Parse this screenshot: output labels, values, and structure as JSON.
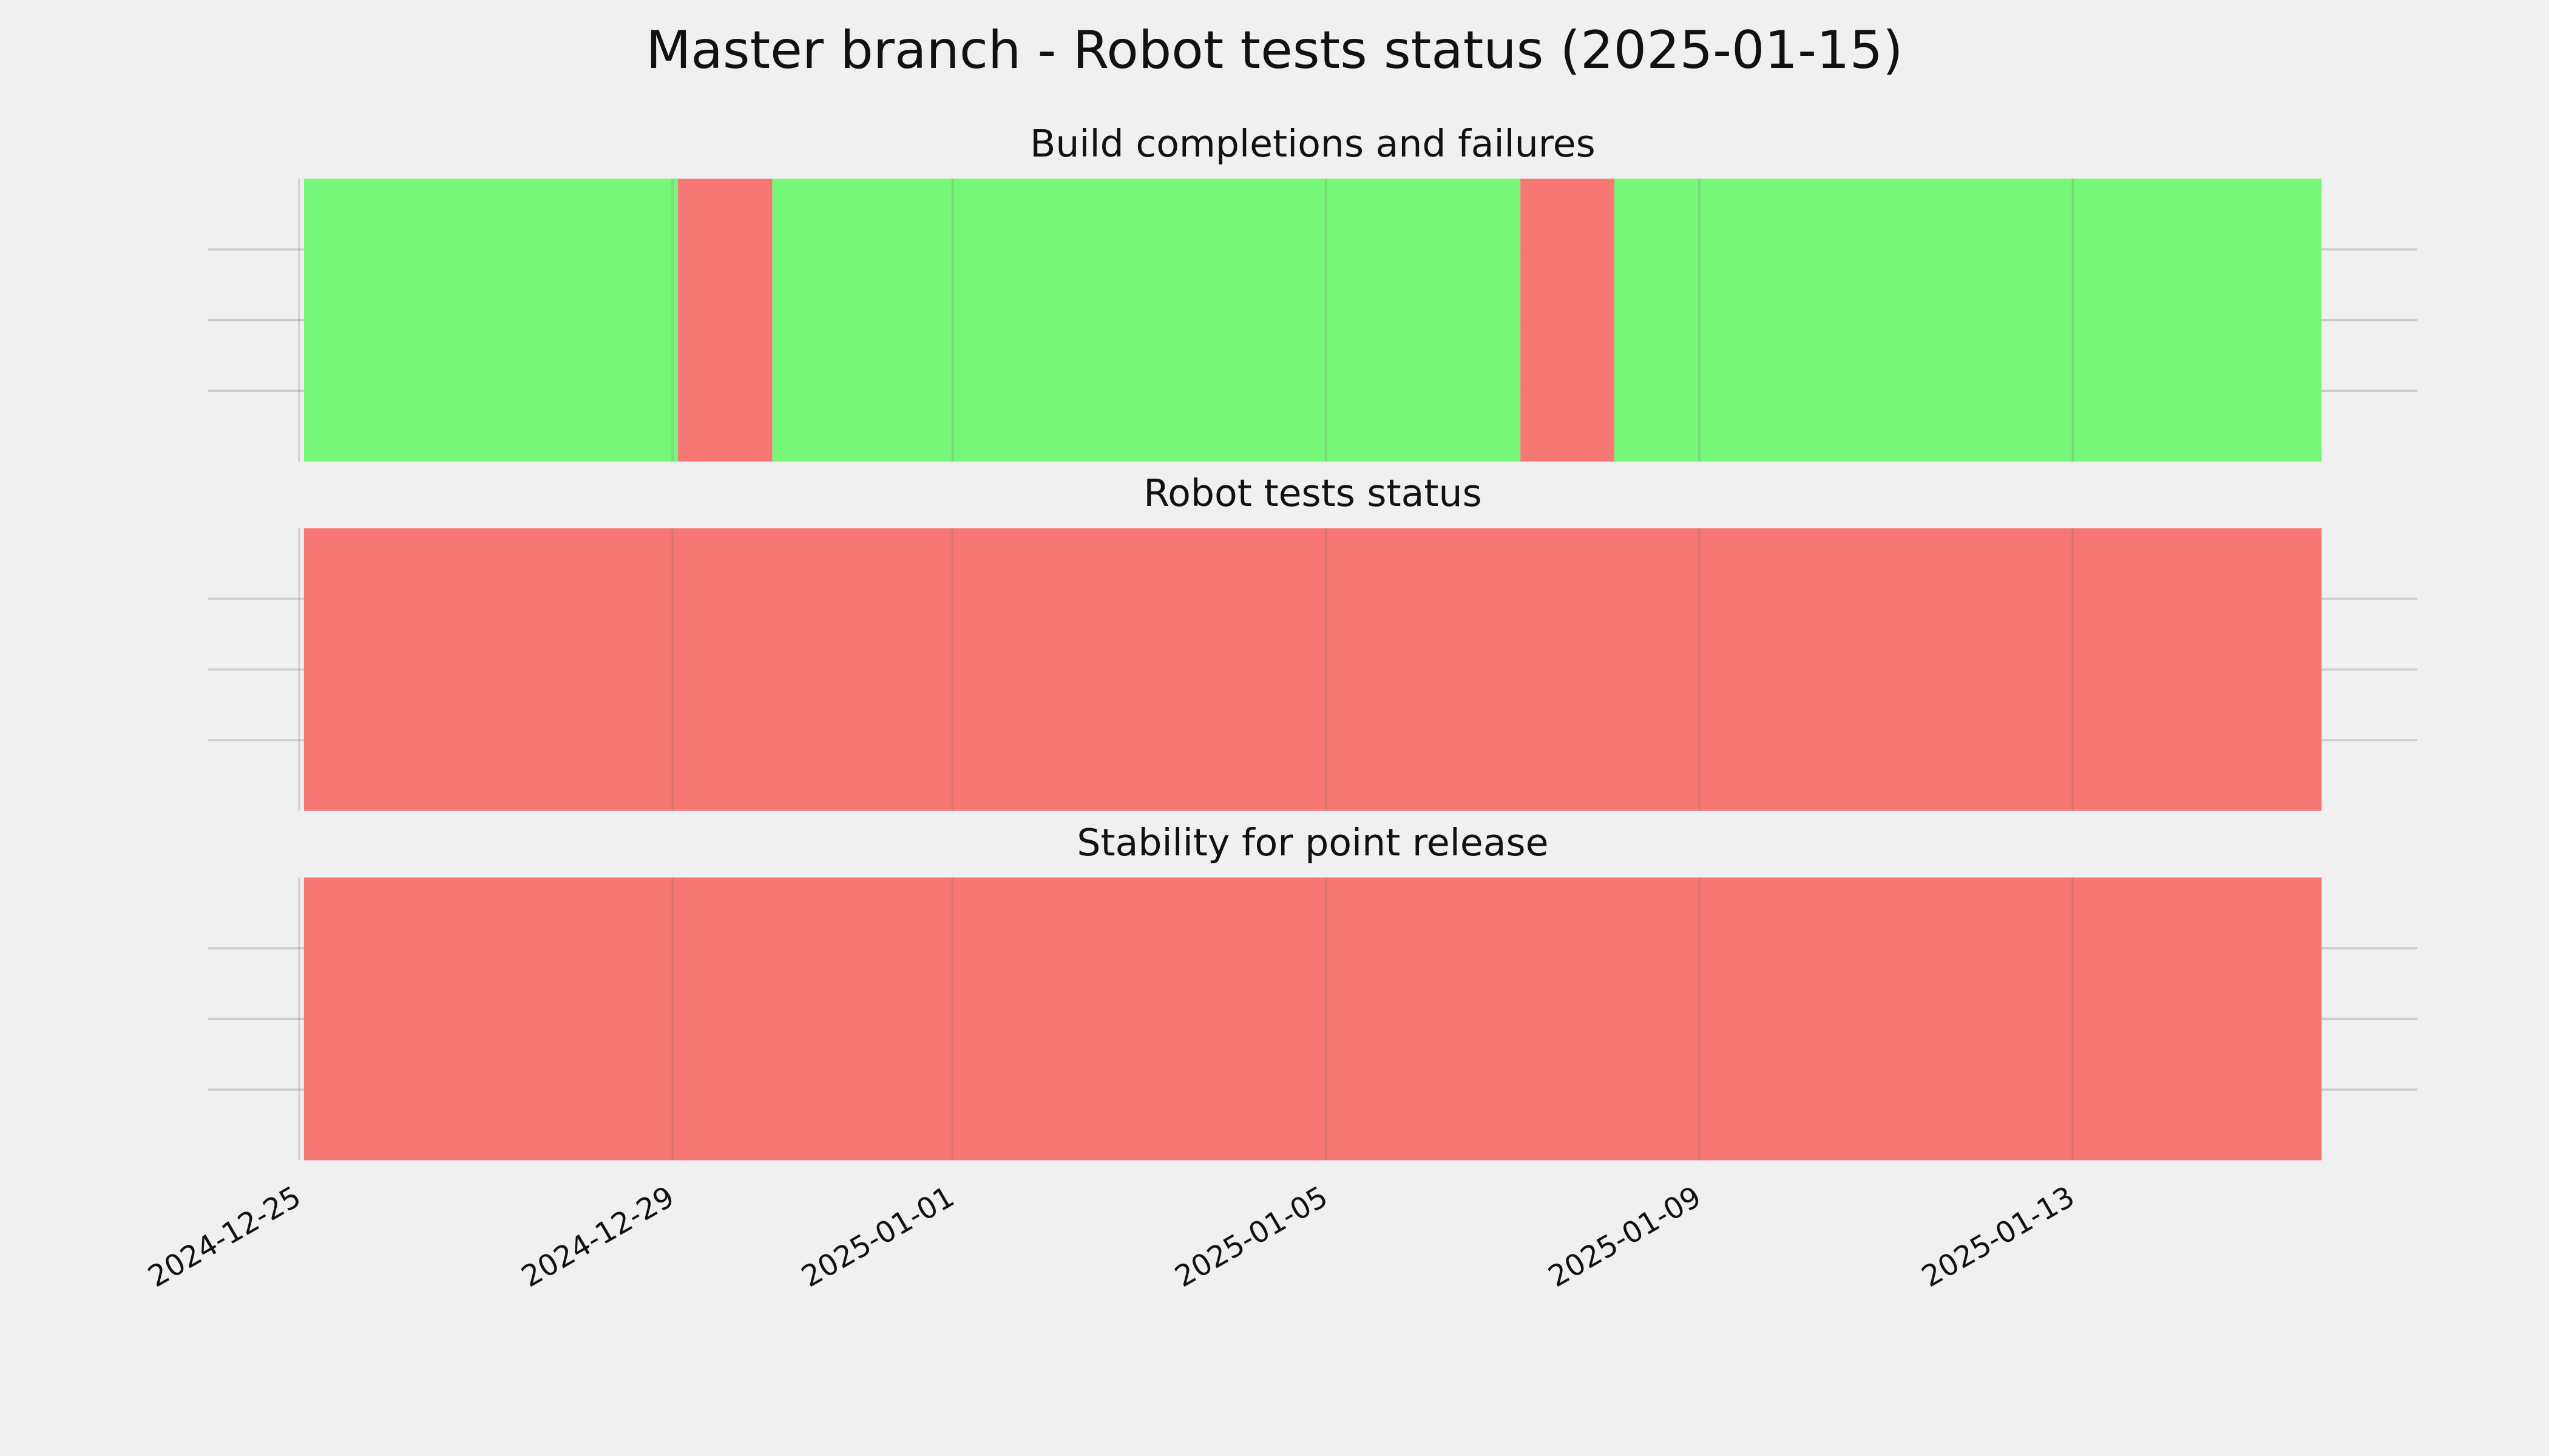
{
  "title": "Master branch - Robot tests status (2025-01-15)",
  "chart_data": [
    {
      "type": "timeline",
      "title": "Build completions and failures",
      "segments": [
        {
          "start": "2024-12-25T01:15",
          "end": "2024-12-29T01:25",
          "color": "#77f77a"
        },
        {
          "start": "2024-12-29T01:25",
          "end": "2024-12-30T01:40",
          "color": "#f77775"
        },
        {
          "start": "2024-12-30T01:40",
          "end": "2025-01-07T02:00",
          "color": "#77f77a"
        },
        {
          "start": "2025-01-07T02:00",
          "end": "2025-01-08T02:10",
          "color": "#f77775"
        },
        {
          "start": "2025-01-08T02:10",
          "end": "2025-01-15T16:00",
          "color": "#77f77a"
        }
      ],
      "xlim": [
        "2024-12-24T00:36",
        "2025-01-16T16:36"
      ],
      "xticks": [
        "2024-12-25",
        "2024-12-29",
        "2025-01-01",
        "2025-01-05",
        "2025-01-09",
        "2025-01-13"
      ],
      "ylim": [
        0,
        1
      ],
      "yticks": [
        0.25,
        0.5,
        0.75
      ],
      "grid": true
    },
    {
      "type": "timeline",
      "title": "Robot tests status",
      "segments": [
        {
          "start": "2024-12-25T01:15",
          "end": "2025-01-15T16:00",
          "color": "#f77775"
        }
      ],
      "xlim": [
        "2024-12-24T00:36",
        "2025-01-16T16:36"
      ],
      "xticks": [
        "2024-12-25",
        "2024-12-29",
        "2025-01-01",
        "2025-01-05",
        "2025-01-09",
        "2025-01-13"
      ],
      "ylim": [
        0,
        1
      ],
      "yticks": [
        0.25,
        0.5,
        0.75
      ],
      "grid": true
    },
    {
      "type": "timeline",
      "title": "Stability for point release",
      "segments": [
        {
          "start": "2024-12-25T01:15",
          "end": "2025-01-15T16:00",
          "color": "#f77775"
        }
      ],
      "xlim": [
        "2024-12-24T00:36",
        "2025-01-16T16:36"
      ],
      "xticks": [
        "2024-12-25",
        "2024-12-29",
        "2025-01-01",
        "2025-01-05",
        "2025-01-09",
        "2025-01-13"
      ],
      "ylim": [
        0,
        1
      ],
      "yticks": [
        0.25,
        0.5,
        0.75
      ],
      "grid": true,
      "tick_labels": true
    }
  ]
}
